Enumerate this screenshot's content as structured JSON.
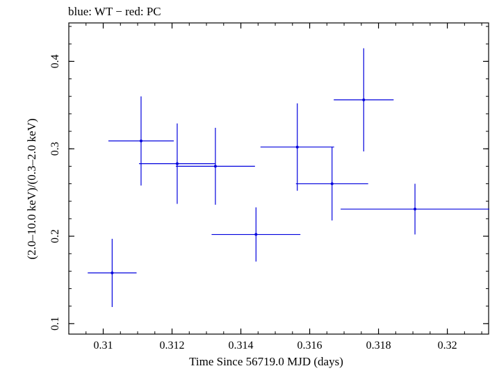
{
  "chart_data": {
    "type": "scatter",
    "title": "blue: WT − red: PC",
    "xlabel": "Time Since 56719.0 MJD (days)",
    "ylabel": "(2.0–10.0 keV)/(0.3–2.0 keV)",
    "xlim": [
      0.309,
      0.3212
    ],
    "ylim": [
      0.088,
      0.444
    ],
    "x_ticks": {
      "major": [
        0.31,
        0.312,
        0.314,
        0.316,
        0.318,
        0.32
      ],
      "labels": [
        "0.31",
        "0.312",
        "0.314",
        "0.316",
        "0.318",
        "0.32"
      ],
      "minor_step": 0.0005
    },
    "y_ticks": {
      "major": [
        0.1,
        0.2,
        0.3,
        0.4
      ],
      "labels": [
        "0.1",
        "0.2",
        "0.3",
        "0.4"
      ],
      "minor_step": 0.02
    },
    "grid": false,
    "series": [
      {
        "name": "WT",
        "color": "#0000dd",
        "points": [
          {
            "x": 0.31026,
            "y": 0.158,
            "xerr_lo": 0.00071,
            "xerr_hi": 0.00071,
            "yerr_lo": 0.039,
            "yerr_hi": 0.039
          },
          {
            "x": 0.3111,
            "y": 0.309,
            "xerr_lo": 0.00095,
            "xerr_hi": 0.00095,
            "yerr_lo": 0.051,
            "yerr_hi": 0.051
          },
          {
            "x": 0.31215,
            "y": 0.283,
            "xerr_lo": 0.00111,
            "xerr_hi": 0.00111,
            "yerr_lo": 0.046,
            "yerr_hi": 0.046
          },
          {
            "x": 0.31326,
            "y": 0.28,
            "xerr_lo": 0.00115,
            "xerr_hi": 0.00115,
            "yerr_lo": 0.044,
            "yerr_hi": 0.044
          },
          {
            "x": 0.31444,
            "y": 0.202,
            "xerr_lo": 0.00129,
            "xerr_hi": 0.00129,
            "yerr_lo": 0.031,
            "yerr_hi": 0.031
          },
          {
            "x": 0.31564,
            "y": 0.302,
            "xerr_lo": 0.00107,
            "xerr_hi": 0.00107,
            "yerr_lo": 0.05,
            "yerr_hi": 0.05
          },
          {
            "x": 0.31665,
            "y": 0.26,
            "xerr_lo": 0.00105,
            "xerr_hi": 0.00105,
            "yerr_lo": 0.042,
            "yerr_hi": 0.042
          },
          {
            "x": 0.31757,
            "y": 0.356,
            "xerr_lo": 0.00087,
            "xerr_hi": 0.00087,
            "yerr_lo": 0.059,
            "yerr_hi": 0.059
          },
          {
            "x": 0.31906,
            "y": 0.231,
            "xerr_lo": 0.00216,
            "xerr_hi": 0.00216,
            "yerr_lo": 0.029,
            "yerr_hi": 0.029
          }
        ]
      }
    ]
  }
}
